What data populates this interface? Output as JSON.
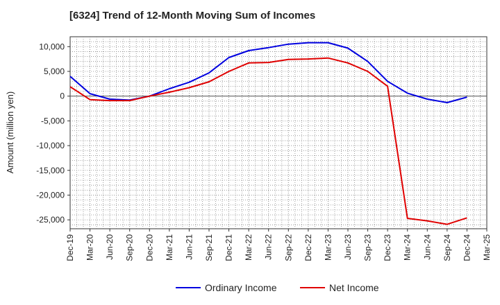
{
  "chart_data": {
    "type": "line",
    "title": "[6324]  Trend of 12-Month Moving Sum of Incomes",
    "ylabel": "Amount (million yen)",
    "xlabel": "",
    "ylim": [
      -26800,
      12000
    ],
    "yticks": [
      10000,
      5000,
      0,
      -5000,
      -10000,
      -15000,
      -20000,
      -25000
    ],
    "ytick_labels": [
      "10,000",
      "5,000",
      "0",
      "-5,000",
      "-10,000",
      "-15,000",
      "-20,000",
      "-25,000"
    ],
    "xtick_labels": [
      "Dec-19",
      "Mar-20",
      "Jun-20",
      "Sep-20",
      "Dec-20",
      "Mar-21",
      "Jun-21",
      "Sep-21",
      "Dec-21",
      "Mar-22",
      "Jun-22",
      "Sep-22",
      "Dec-22",
      "Mar-23",
      "Jun-23",
      "Sep-23",
      "Dec-23",
      "Mar-24",
      "Jun-24",
      "Sep-24",
      "Dec-24",
      "Mar-25"
    ],
    "x": [
      "Dec-19",
      "Mar-20",
      "Jun-20",
      "Sep-20",
      "Dec-20",
      "Mar-21",
      "Jun-21",
      "Sep-21",
      "Dec-21",
      "Mar-22",
      "Jun-22",
      "Sep-22",
      "Dec-22",
      "Mar-23",
      "Jun-23",
      "Sep-23",
      "Dec-23",
      "Mar-24",
      "Jun-24",
      "Sep-24",
      "Dec-24"
    ],
    "grid": true,
    "legend_position": "bottom-center",
    "series": [
      {
        "name": "Ordinary Income",
        "color": "#0000e0",
        "values": [
          4000,
          500,
          -600,
          -800,
          0,
          1500,
          2800,
          4700,
          7800,
          9200,
          9800,
          10500,
          10800,
          10800,
          9700,
          7000,
          3000,
          600,
          -600,
          -1300,
          -200
        ]
      },
      {
        "name": "Net Income",
        "color": "#e00000",
        "values": [
          1900,
          -700,
          -900,
          -900,
          0,
          800,
          1700,
          2900,
          5000,
          6700,
          6800,
          7400,
          7500,
          7700,
          6700,
          5000,
          2000,
          -24700,
          -25200,
          -25900,
          -24600
        ]
      }
    ]
  }
}
